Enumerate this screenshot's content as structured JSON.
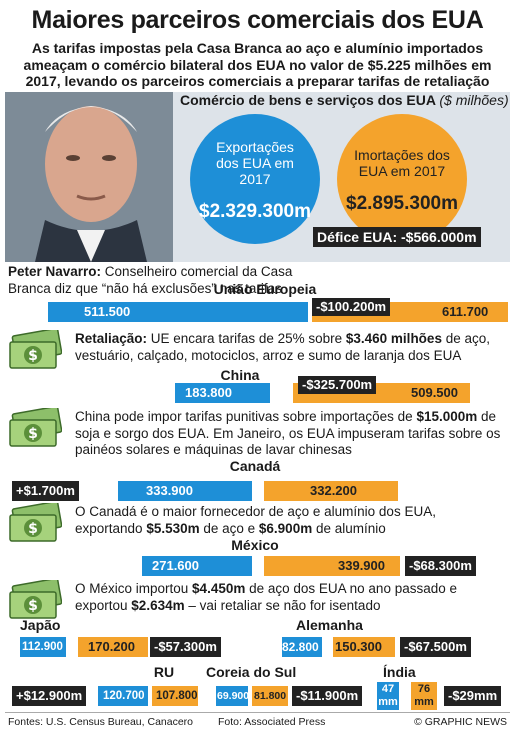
{
  "title": "Maiores parceiros comerciais dos EUA",
  "subtitle": "As tarifas impostas pela Casa Branca ao aço e alumínio importados ameaçam o comércio bilateral dos EUA no valor de $5.225 milhões em 2017, levando os parceiros comerciais a preparar tarifas de retaliação sobre produtos dos EUA",
  "overview": {
    "heading": "Comércio de bens e serviços dos EUA",
    "unit": "($ milhões)",
    "exports_label": "Exportações dos EUA em 2017",
    "exports_value": "$2.329.300m",
    "imports_label": "Imortações dos EUA em 2017",
    "imports_value": "$2.895.300m",
    "deficit": "Défice EUA: -$566.000m"
  },
  "caption": {
    "name": "Peter Navarro:",
    "text": " Conselheiro comercial da Casa Branca diz que “não há exclusões” nas tarifas"
  },
  "partners": {
    "eu": {
      "name": "União Europeia",
      "exp": "511.500",
      "imp": "611.700",
      "bal": "-$100.200m",
      "note_a": "Retaliação:",
      "note_b": " UE encara tarifas de 25% sobre ",
      "note_c": "$3.460 milhões",
      "note_d": " de aço, vestuário, calçado, motociclos, arroz e sumo de laranja dos EUA"
    },
    "cn": {
      "name": "China",
      "exp": "183.800",
      "imp": "509.500",
      "bal": "-$325.700m",
      "note_a": "China pode impor tarifas punitivas sobre importações de ",
      "note_b": "$15.000m",
      "note_c": " de soja e sorgo dos EUA. Em Janeiro, os EUA impuseram tarifas sobre os painéos solares e máquinas de lavar chinesas"
    },
    "ca": {
      "name": "Canadá",
      "exp": "333.900",
      "imp": "332.200",
      "bal": "+$1.700m",
      "note_a": "O Canadá é o maior fornecedor de aço e alumínio dos EUA, exportando ",
      "note_b": "$5.530m",
      "note_c": " de aço e ",
      "note_d": "$6.900m",
      "note_e": " de alumínio"
    },
    "mx": {
      "name": "México",
      "exp": "271.600",
      "imp": "339.900",
      "bal": "-$68.300m",
      "note_a": "O México importou ",
      "note_b": "$4.450m",
      "note_c": " de aço dos EUA no ano passado e exportou ",
      "note_d": "$2.634m",
      "note_e": " – vai retaliar se não for isentado"
    },
    "jp": {
      "name": "Japão",
      "exp": "112.900",
      "imp": "170.200",
      "bal": "-$57.300m"
    },
    "de": {
      "name": "Alemanha",
      "exp": "82.800",
      "imp": "150.300",
      "bal": "-$67.500m"
    },
    "uk": {
      "name": "RU",
      "exp": "120.700",
      "imp": "107.800",
      "bal": "+$12.900m"
    },
    "kr": {
      "name": "Coreia do Sul",
      "exp": "69.900",
      "imp": "81.800",
      "bal": "-$11.900m"
    },
    "in": {
      "name": "Índia",
      "exp_a": "47",
      "exp_b": "mm",
      "imp_a": "76",
      "imp_b": "mm",
      "bal": "-$29mm"
    }
  },
  "chart_data": {
    "type": "bar",
    "title": "Comércio de bens e serviços dos EUA",
    "ylabel": "$ milhões",
    "categories": [
      "União Europeia",
      "China",
      "Canadá",
      "México",
      "Japão",
      "Alemanha",
      "RU",
      "Coreia do Sul",
      "Índia"
    ],
    "series": [
      {
        "name": "Exportações dos EUA em 2017",
        "values": [
          511500,
          183800,
          333900,
          271600,
          112900,
          82800,
          120700,
          69900,
          47000
        ]
      },
      {
        "name": "Imortações dos EUA em 2017",
        "values": [
          611700,
          509500,
          332200,
          339900,
          170200,
          150300,
          107800,
          81800,
          76000
        ]
      }
    ],
    "balance": [
      -100200,
      -325700,
      1700,
      -68300,
      -57300,
      -67500,
      12900,
      -11900,
      -29000
    ],
    "totals": {
      "exports": 2329300,
      "imports": 2895300,
      "deficit": -566000
    },
    "colors": {
      "exports": "#1e8fd7",
      "imports": "#f4a32c",
      "balance": "#222222"
    }
  },
  "footer": {
    "sources": "Fontes: U.S. Census Bureau, Canacero",
    "photo": "Foto: Associated Press",
    "credit": "© GRAPHIC NEWS"
  }
}
